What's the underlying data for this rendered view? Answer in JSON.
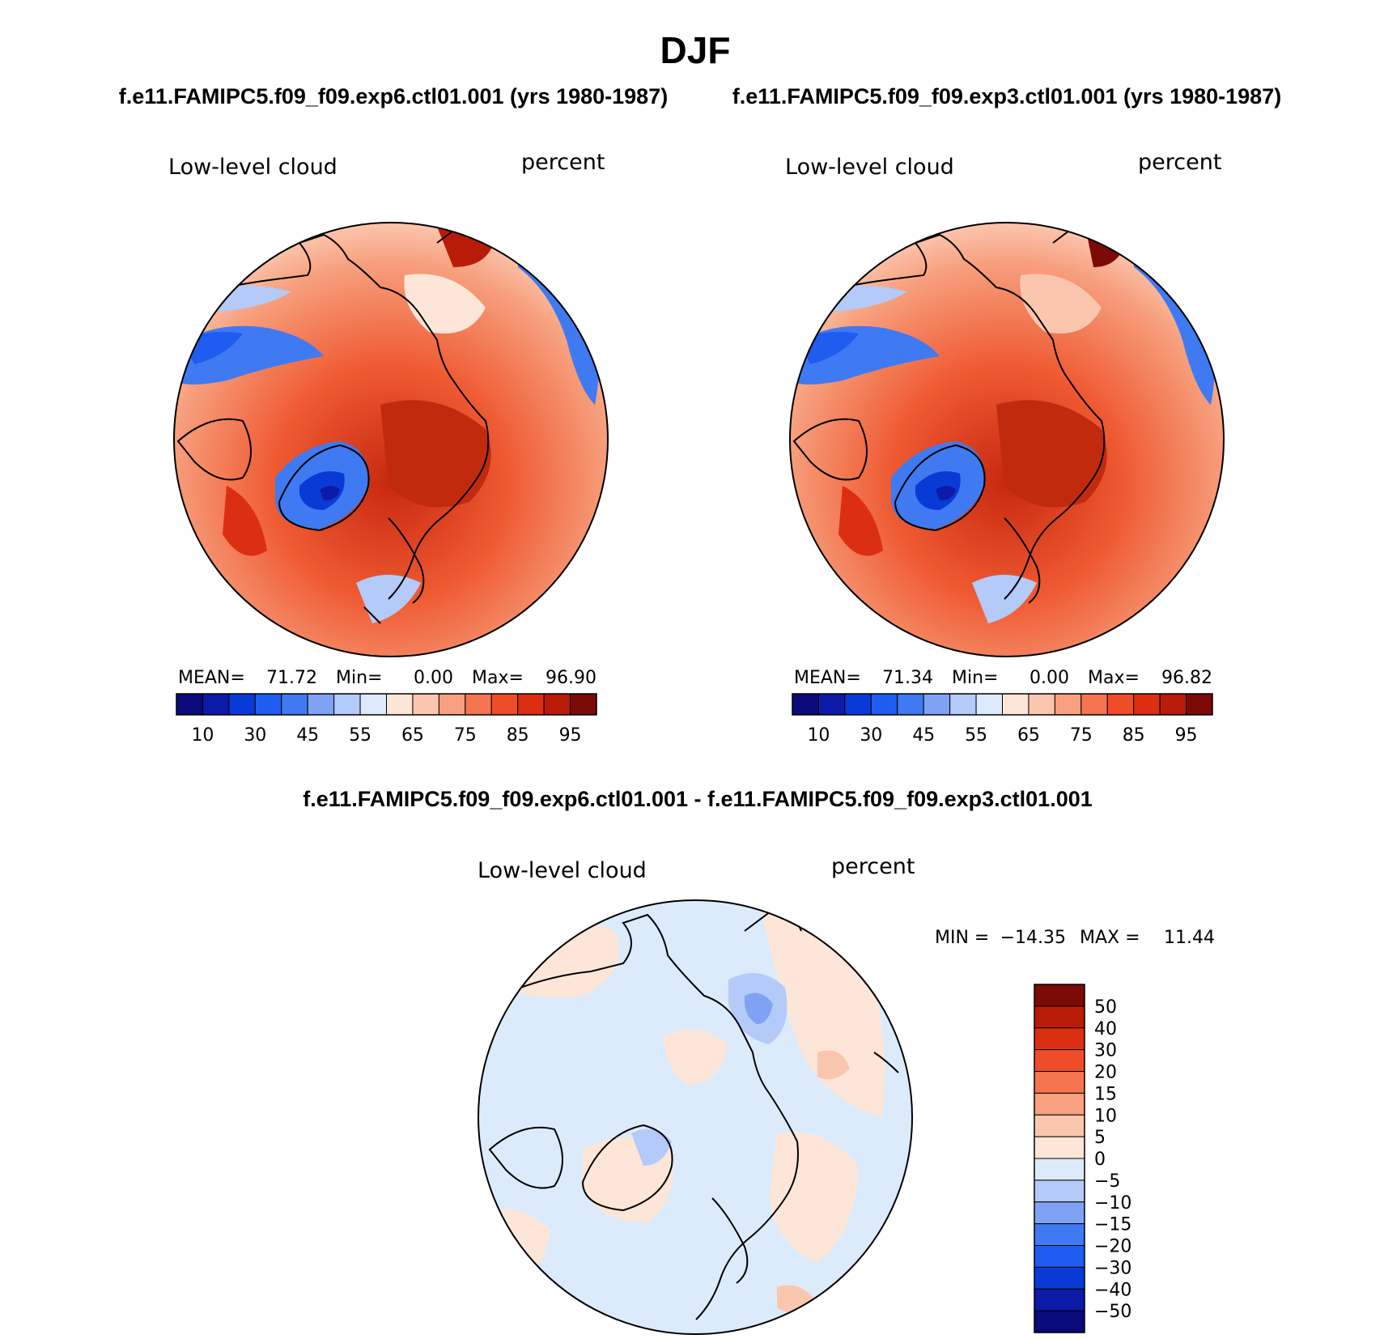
{
  "title": "DJF",
  "panels": [
    {
      "case_title": "f.e11.FAMIPC5.f09_f09.exp6.ctl01.001 (yrs 1980-1987)",
      "variable": "Low-level cloud",
      "units": "percent",
      "stats": {
        "mean_label": "MEAN=",
        "mean": "71.72",
        "min_label": "Min=",
        "min": "0.00",
        "max_label": "Max=",
        "max": "96.90"
      }
    },
    {
      "case_title": "f.e11.FAMIPC5.f09_f09.exp3.ctl01.001 (yrs 1980-1987)",
      "variable": "Low-level cloud",
      "units": "percent",
      "stats": {
        "mean_label": "MEAN=",
        "mean": "71.34",
        "min_label": "Min=",
        "min": "0.00",
        "max_label": "Max=",
        "max": "96.82"
      }
    }
  ],
  "diff_panel": {
    "case_title": "f.e11.FAMIPC5.f09_f09.exp6.ctl01.001 - f.e11.FAMIPC5.f09_f09.exp3.ctl01.001",
    "variable": "Low-level cloud",
    "units": "percent",
    "stats": {
      "min_label": "MIN =",
      "min": "−14.35",
      "max_label": "MAX =",
      "max": "11.44"
    }
  },
  "colorbar_main": {
    "colors": [
      "#0a0a7a",
      "#0c1aa8",
      "#0a3ad6",
      "#1f5cf0",
      "#3f7af2",
      "#7fa2f5",
      "#b4caf8",
      "#ddeafb",
      "#fde6d8",
      "#fbc6ae",
      "#f8a07f",
      "#f4754f",
      "#ef4d2a",
      "#dc2f11",
      "#b81c09",
      "#7c0a06"
    ],
    "labels": [
      "10",
      "30",
      "45",
      "55",
      "65",
      "75",
      "85",
      "95"
    ]
  },
  "colorbar_diff": {
    "colors": [
      "#7c0a06",
      "#b81c09",
      "#dc2f11",
      "#ef4d2a",
      "#f4754f",
      "#f8a07f",
      "#fbc6ae",
      "#fde6d8",
      "#ddeafb",
      "#b4caf8",
      "#7fa2f5",
      "#3f7af2",
      "#1f5cf0",
      "#0a3ad6",
      "#0c1aa8",
      "#0a0a7a"
    ],
    "labels": [
      "50",
      "40",
      "30",
      "20",
      "15",
      "10",
      "5",
      "0",
      "−5",
      "−10",
      "−15",
      "−20",
      "−30",
      "−40",
      "−50"
    ]
  }
}
